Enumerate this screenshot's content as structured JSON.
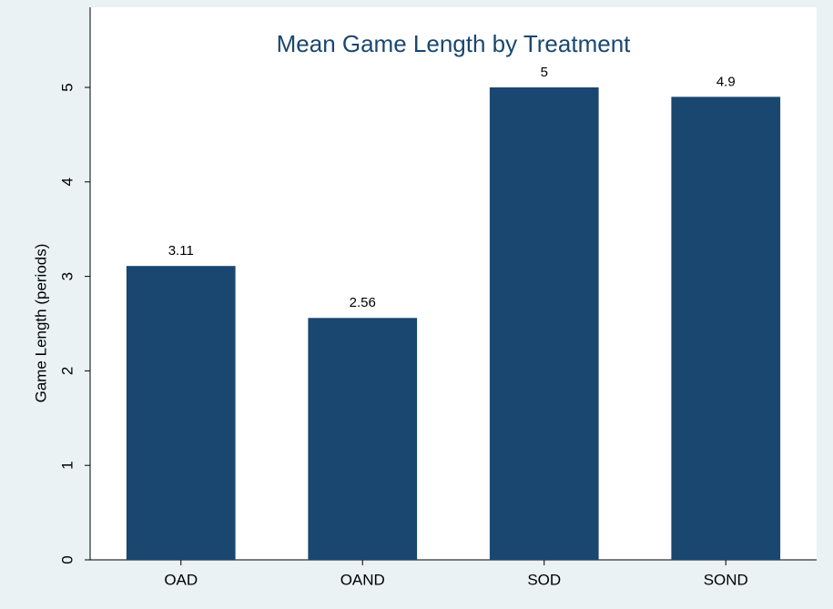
{
  "chart_data": {
    "type": "bar",
    "title": "Mean Game Length by Treatment",
    "y_label": "Game Length (periods)",
    "categories": [
      "OAD",
      "OAND",
      "SOD",
      "SOND"
    ],
    "values": [
      3.11,
      2.56,
      5,
      4.9
    ],
    "color": "#1a476f",
    "ylim": [
      0,
      5
    ],
    "yticks": [
      0,
      1,
      2,
      3,
      4,
      5
    ],
    "grid": false
  }
}
